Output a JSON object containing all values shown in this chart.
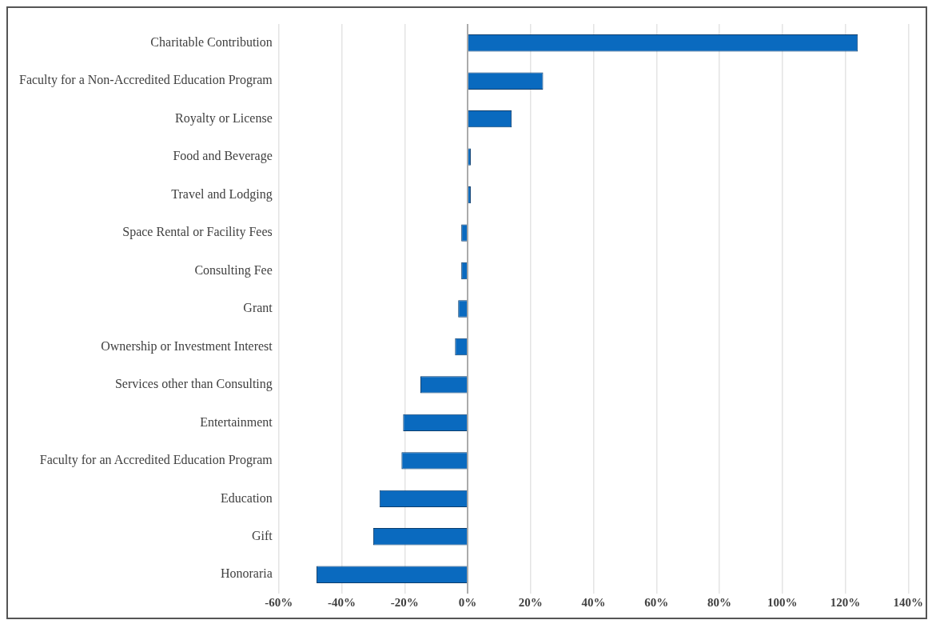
{
  "chart_data": {
    "type": "bar",
    "orientation": "horizontal",
    "categories": [
      "Charitable Contribution",
      "Faculty for a Non-Accredited Education Program",
      "Royalty or License",
      "Food and Beverage",
      "Travel and Lodging",
      "Space Rental or Facility Fees",
      "Consulting Fee",
      "Grant",
      "Ownership or Investment Interest",
      "Services other than Consulting",
      "Entertainment",
      "Faculty for an Accredited Education Program",
      "Education",
      "Gift",
      "Honoraria"
    ],
    "values": [
      124,
      24,
      14,
      1,
      1,
      -2,
      -2,
      -3,
      -4,
      -15,
      -20.5,
      -21,
      -28,
      -30,
      -48
    ],
    "color": "#0a6abf",
    "xlim": [
      -60,
      140
    ],
    "xticks": [
      {
        "value": -60,
        "label": "-60%"
      },
      {
        "value": -40,
        "label": "-40%"
      },
      {
        "value": -20,
        "label": "-20%"
      },
      {
        "value": 0,
        "label": "0%"
      },
      {
        "value": 20,
        "label": "20%"
      },
      {
        "value": 40,
        "label": "40%"
      },
      {
        "value": 60,
        "label": "60%"
      },
      {
        "value": 80,
        "label": "80%"
      },
      {
        "value": 100,
        "label": "100%"
      },
      {
        "value": 120,
        "label": "120%"
      },
      {
        "value": 140,
        "label": "140%"
      }
    ],
    "grid": "x"
  }
}
